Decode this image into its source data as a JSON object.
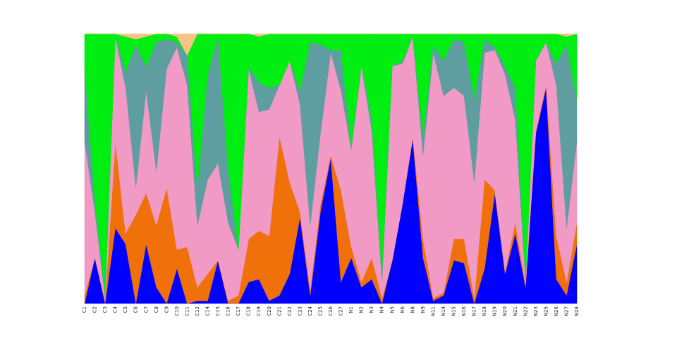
{
  "chart_data": {
    "type": "stacked_area",
    "categories": [
      "C1",
      "C2",
      "C3",
      "C4",
      "C5",
      "C6",
      "C7",
      "C8",
      "C9",
      "C10",
      "C11",
      "C12",
      "C14",
      "C15",
      "C16",
      "C17",
      "C18",
      "C19",
      "C20",
      "C21",
      "C22",
      "C23",
      "C24",
      "C25",
      "C26",
      "C27",
      "N1",
      "N2",
      "N3",
      "N4",
      "N5",
      "N6",
      "N8",
      "N9",
      "N11",
      "N14",
      "N15",
      "N16",
      "N17",
      "N18",
      "N19",
      "N20",
      "N21",
      "N22",
      "N23",
      "N25",
      "N26",
      "N27",
      "N28"
    ],
    "ylim": [
      0,
      100
    ],
    "series": [
      {
        "color": "#0000ff",
        "values": [
          0,
          17,
          0,
          28,
          22,
          0,
          22,
          6,
          0,
          13,
          0,
          1,
          1,
          16,
          0,
          0,
          8,
          9,
          1,
          3,
          11,
          32,
          3,
          34,
          54,
          8,
          17,
          6,
          9,
          0,
          16,
          37,
          61,
          17,
          1,
          3,
          16,
          15,
          0,
          13,
          41,
          11,
          26,
          6,
          63,
          80,
          9,
          3,
          22
        ]
      },
      {
        "color": "#f0700a",
        "values": [
          3,
          0,
          1,
          32,
          4,
          33,
          19,
          23,
          43,
          7,
          21,
          5,
          10,
          0,
          1,
          3,
          16,
          18,
          24,
          59,
          34,
          2,
          2,
          3,
          1,
          34,
          4,
          2,
          8,
          2,
          0,
          0,
          1,
          7,
          1,
          1,
          8,
          9,
          2,
          33,
          1,
          1,
          4,
          1,
          1,
          1,
          16,
          5,
          8
        ]
      },
      {
        "color": "#f29ac6",
        "values": [
          57,
          17,
          1,
          39,
          54,
          10,
          38,
          20,
          44,
          75,
          60,
          23,
          35,
          36,
          29,
          17,
          63,
          44,
          47,
          19,
          45,
          40,
          24,
          26,
          38,
          37,
          36,
          80,
          47,
          6,
          72,
          52,
          37,
          31,
          91,
          73,
          56,
          53,
          43,
          47,
          52,
          73,
          38,
          1,
          26,
          16,
          56,
          20,
          30
        ]
      },
      {
        "color": "#5f9ea0",
        "values": [
          28,
          4,
          1,
          0,
          6,
          53,
          9,
          48,
          11,
          2,
          11,
          14,
          39,
          47,
          20,
          0,
          1,
          11,
          8,
          0,
          0,
          5,
          68,
          33,
          1,
          15,
          1,
          1,
          4,
          4,
          0,
          1,
          0,
          7,
          3,
          13,
          18,
          20,
          31,
          5,
          1,
          3,
          12,
          1,
          0,
          0,
          8,
          68,
          16
        ]
      },
      {
        "color": "#00ee11",
        "values": [
          12,
          62,
          97,
          1,
          13,
          2,
          11,
          3,
          2,
          2,
          0,
          57,
          15,
          1,
          50,
          80,
          12,
          17,
          20,
          19,
          10,
          21,
          3,
          4,
          6,
          6,
          42,
          11,
          32,
          88,
          12,
          10,
          1,
          38,
          4,
          10,
          2,
          3,
          24,
          2,
          5,
          12,
          20,
          91,
          10,
          3,
          11,
          3,
          24
        ]
      },
      {
        "color": "#f7c388",
        "values": [
          0,
          0,
          0,
          0,
          1,
          2,
          1,
          0,
          0,
          1,
          8,
          0,
          0,
          0,
          0,
          0,
          0,
          1,
          0,
          0,
          0,
          0,
          0,
          0,
          0,
          0,
          0,
          0,
          0,
          0,
          0,
          0,
          0,
          0,
          0,
          0,
          0,
          0,
          0,
          0,
          0,
          0,
          0,
          0,
          0,
          0,
          0,
          1,
          0
        ]
      }
    ]
  }
}
